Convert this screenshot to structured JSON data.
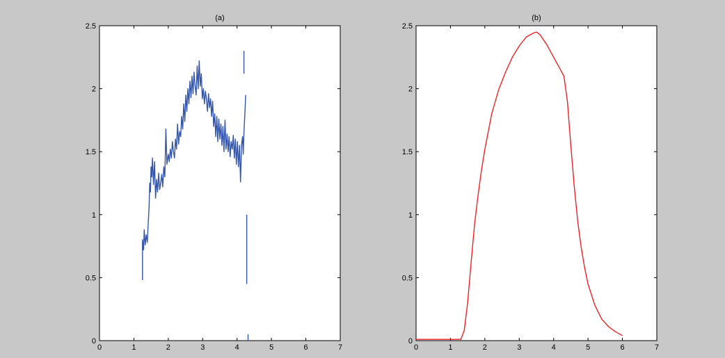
{
  "figure": {
    "background": "#c8c8c8",
    "axes_background": "#ffffff"
  },
  "chart_data": [
    {
      "type": "line",
      "title": "(a)",
      "xlabel": "",
      "ylabel": "",
      "xlim": [
        0,
        7
      ],
      "ylim": [
        0,
        2.5
      ],
      "xticks": [
        "0",
        "1",
        "2",
        "3",
        "4",
        "5",
        "6",
        "7"
      ],
      "yticks": [
        "0",
        "0.5",
        "1",
        "1.5",
        "2",
        "2.5"
      ],
      "grid": false,
      "series": [
        {
          "color": "#3355aa",
          "segments": [
            [
              [
                1.25,
                0.48
              ],
              [
                1.25,
                0.8
              ],
              [
                1.28,
                0.72
              ],
              [
                1.3,
                0.88
              ],
              [
                1.33,
                0.76
              ],
              [
                1.36,
                0.84
              ],
              [
                1.39,
                0.78
              ],
              [
                1.42,
                0.95
              ],
              [
                1.44,
                1.05
              ],
              [
                1.46,
                1.25
              ],
              [
                1.48,
                1.18
              ],
              [
                1.5,
                1.38
              ],
              [
                1.52,
                1.3
              ],
              [
                1.54,
                1.45
              ],
              [
                1.57,
                1.24
              ],
              [
                1.6,
                1.42
              ],
              [
                1.63,
                1.13
              ],
              [
                1.66,
                1.28
              ],
              [
                1.69,
                1.18
              ],
              [
                1.72,
                1.33
              ],
              [
                1.75,
                1.2
              ],
              [
                1.78,
                1.25
              ],
              [
                1.81,
                1.32
              ],
              [
                1.84,
                1.22
              ],
              [
                1.87,
                1.38
              ],
              [
                1.9,
                1.3
              ],
              [
                1.93,
                1.68
              ],
              [
                1.96,
                1.4
              ],
              [
                2.0,
                1.48
              ],
              [
                2.03,
                1.42
              ],
              [
                2.06,
                1.52
              ],
              [
                2.09,
                1.45
              ],
              [
                2.12,
                1.58
              ],
              [
                2.15,
                1.5
              ],
              [
                2.18,
                1.45
              ],
              [
                2.21,
                1.6
              ],
              [
                2.24,
                1.52
              ],
              [
                2.27,
                1.72
              ],
              [
                2.3,
                1.56
              ],
              [
                2.33,
                1.66
              ],
              [
                2.36,
                1.62
              ],
              [
                2.39,
                1.78
              ],
              [
                2.42,
                1.68
              ],
              [
                2.45,
                1.88
              ],
              [
                2.48,
                1.74
              ],
              [
                2.51,
                1.95
              ],
              [
                2.54,
                1.82
              ],
              [
                2.57,
                2.0
              ],
              [
                2.6,
                1.88
              ],
              [
                2.63,
                2.06
              ],
              [
                2.66,
                1.93
              ],
              [
                2.69,
                2.1
              ],
              [
                2.72,
                1.96
              ],
              [
                2.75,
                2.13
              ],
              [
                2.78,
                2.02
              ],
              [
                2.81,
                1.95
              ],
              [
                2.84,
                2.18
              ],
              [
                2.87,
                2.0
              ],
              [
                2.9,
                2.22
              ],
              [
                2.93,
                2.02
              ],
              [
                2.96,
                2.12
              ],
              [
                2.99,
                1.92
              ],
              [
                3.02,
                2.0
              ],
              [
                3.05,
                1.88
              ],
              [
                3.08,
                1.98
              ],
              [
                3.11,
                1.92
              ],
              [
                3.14,
                1.82
              ],
              [
                3.17,
                1.96
              ],
              [
                3.2,
                1.85
              ],
              [
                3.23,
                1.92
              ],
              [
                3.26,
                1.78
              ],
              [
                3.29,
                1.9
              ],
              [
                3.32,
                1.7
              ],
              [
                3.35,
                1.8
              ],
              [
                3.38,
                1.62
              ],
              [
                3.41,
                1.78
              ],
              [
                3.44,
                1.58
              ],
              [
                3.47,
                1.76
              ],
              [
                3.5,
                1.6
              ],
              [
                3.53,
                1.72
              ],
              [
                3.56,
                1.55
              ],
              [
                3.59,
                1.7
              ],
              [
                3.62,
                1.5
              ],
              [
                3.65,
                1.75
              ],
              [
                3.68,
                1.52
              ],
              [
                3.71,
                1.64
              ],
              [
                3.74,
                1.5
              ],
              [
                3.77,
                1.62
              ],
              [
                3.8,
                1.46
              ],
              [
                3.83,
                1.58
              ],
              [
                3.86,
                1.52
              ],
              [
                3.89,
                1.63
              ],
              [
                3.92,
                1.45
              ],
              [
                3.95,
                1.6
              ],
              [
                3.98,
                1.4
              ],
              [
                4.01,
                1.58
              ],
              [
                4.04,
                1.38
              ],
              [
                4.07,
                1.55
              ],
              [
                4.1,
                1.26
              ],
              [
                4.13,
                1.55
              ],
              [
                4.16,
                1.62
              ],
              [
                4.18,
                1.48
              ],
              [
                4.2,
                1.65
              ],
              [
                4.23,
                1.82
              ],
              [
                4.25,
                1.95
              ]
            ],
            [
              [
                4.2,
                2.3
              ],
              [
                4.2,
                2.12
              ]
            ],
            [
              [
                4.28,
                1.0
              ],
              [
                4.28,
                0.45
              ]
            ],
            [
              [
                4.32,
                0.05
              ],
              [
                4.32,
                0.0
              ]
            ]
          ]
        }
      ]
    },
    {
      "type": "line",
      "title": "(b)",
      "xlabel": "",
      "ylabel": "",
      "xlim": [
        0,
        7
      ],
      "ylim": [
        0,
        2.5
      ],
      "xticks": [
        "0",
        "1",
        "2",
        "3",
        "4",
        "5",
        "6",
        "7"
      ],
      "yticks": [
        "0",
        "0.5",
        "1",
        "1.5",
        "2",
        "2.5"
      ],
      "grid": false,
      "series": [
        {
          "color": "#ee2222",
          "segments": [
            [
              [
                0.0,
                0.01
              ],
              [
                1.3,
                0.01
              ],
              [
                1.4,
                0.08
              ],
              [
                1.5,
                0.3
              ],
              [
                1.6,
                0.62
              ],
              [
                1.7,
                0.92
              ],
              [
                1.8,
                1.15
              ],
              [
                1.9,
                1.35
              ],
              [
                2.0,
                1.52
              ],
              [
                2.2,
                1.8
              ],
              [
                2.4,
                1.99
              ],
              [
                2.6,
                2.13
              ],
              [
                2.8,
                2.25
              ],
              [
                3.0,
                2.34
              ],
              [
                3.2,
                2.41
              ],
              [
                3.4,
                2.44
              ],
              [
                3.5,
                2.45
              ],
              [
                3.6,
                2.43
              ],
              [
                3.8,
                2.35
              ],
              [
                4.0,
                2.25
              ],
              [
                4.2,
                2.15
              ],
              [
                4.3,
                2.1
              ],
              [
                4.4,
                1.9
              ],
              [
                4.5,
                1.55
              ],
              [
                4.6,
                1.22
              ],
              [
                4.7,
                0.95
              ],
              [
                4.8,
                0.74
              ],
              [
                4.9,
                0.58
              ],
              [
                5.0,
                0.45
              ],
              [
                5.2,
                0.28
              ],
              [
                5.4,
                0.17
              ],
              [
                5.6,
                0.11
              ],
              [
                5.8,
                0.07
              ],
              [
                6.0,
                0.04
              ]
            ]
          ]
        }
      ]
    }
  ]
}
